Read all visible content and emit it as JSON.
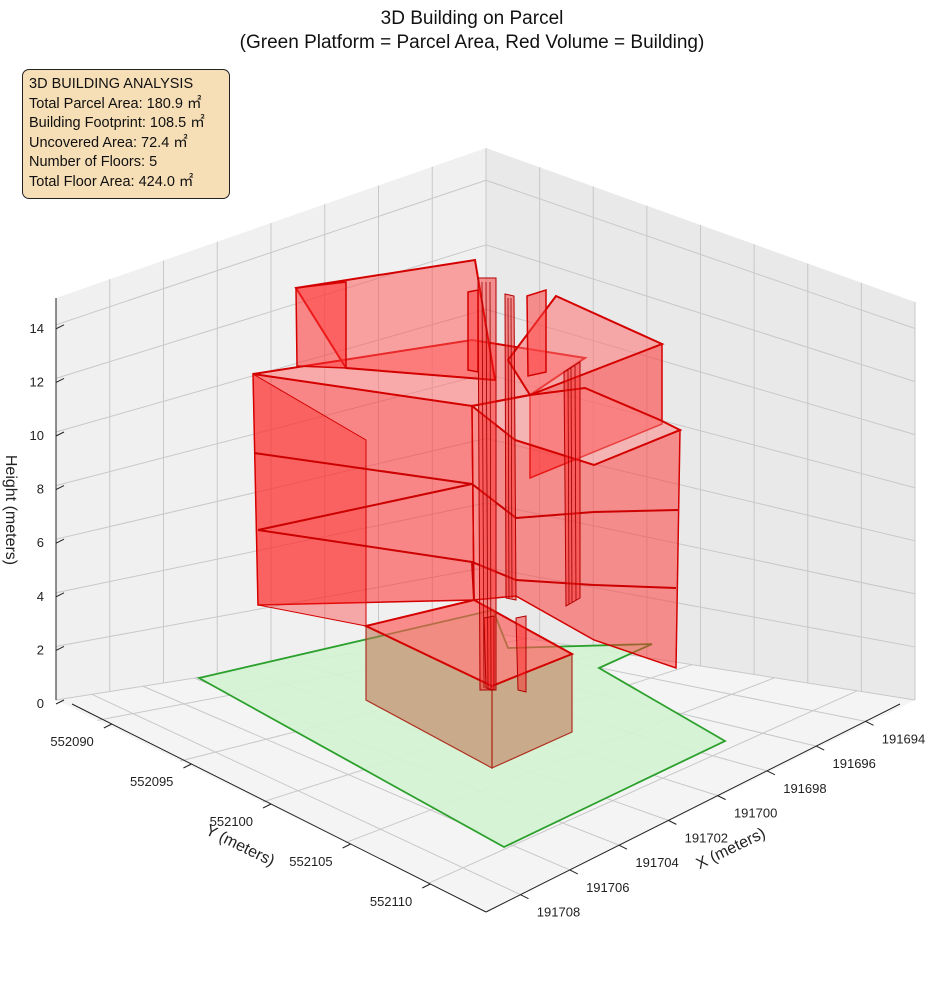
{
  "title_line1": "3D Building on Parcel",
  "title_line2": "(Green Platform = Parcel Area, Red Volume = Building)",
  "info_box": {
    "heading": "3D BUILDING ANALYSIS",
    "lines": [
      "Total Parcel Area: 180.9 ㎡",
      "Building Footprint: 108.5 ㎡",
      "Uncovered Area: 72.4 ㎡",
      "Number of Floors: 5",
      "Total Floor Area: 424.0 ㎡"
    ]
  },
  "chart_data": {
    "type": "3d-polygon",
    "xlabel": "X (meters)",
    "ylabel": "Y (meters)",
    "zlabel": "Height (meters)",
    "x_ticks": [
      "191694",
      "191696",
      "191698",
      "191700",
      "191702",
      "191704",
      "191706",
      "191708"
    ],
    "y_ticks": [
      "552090",
      "552095",
      "552100",
      "552105",
      "552110"
    ],
    "z_ticks": [
      "0",
      "2",
      "4",
      "6",
      "8",
      "10",
      "12",
      "14"
    ],
    "xlim": [
      191692.6,
      191709.4
    ],
    "ylim": [
      552087.5,
      552113.5
    ],
    "zlim": [
      0,
      15
    ],
    "grid": true,
    "colors": {
      "parcel_fill": "#d4f2d4",
      "parcel_edge": "#2ca02c",
      "building_fill": "#ff3b3b",
      "building_edge": "#d40000",
      "pane": "#f2f2f2",
      "grid": "#c8c8c8"
    }
  }
}
